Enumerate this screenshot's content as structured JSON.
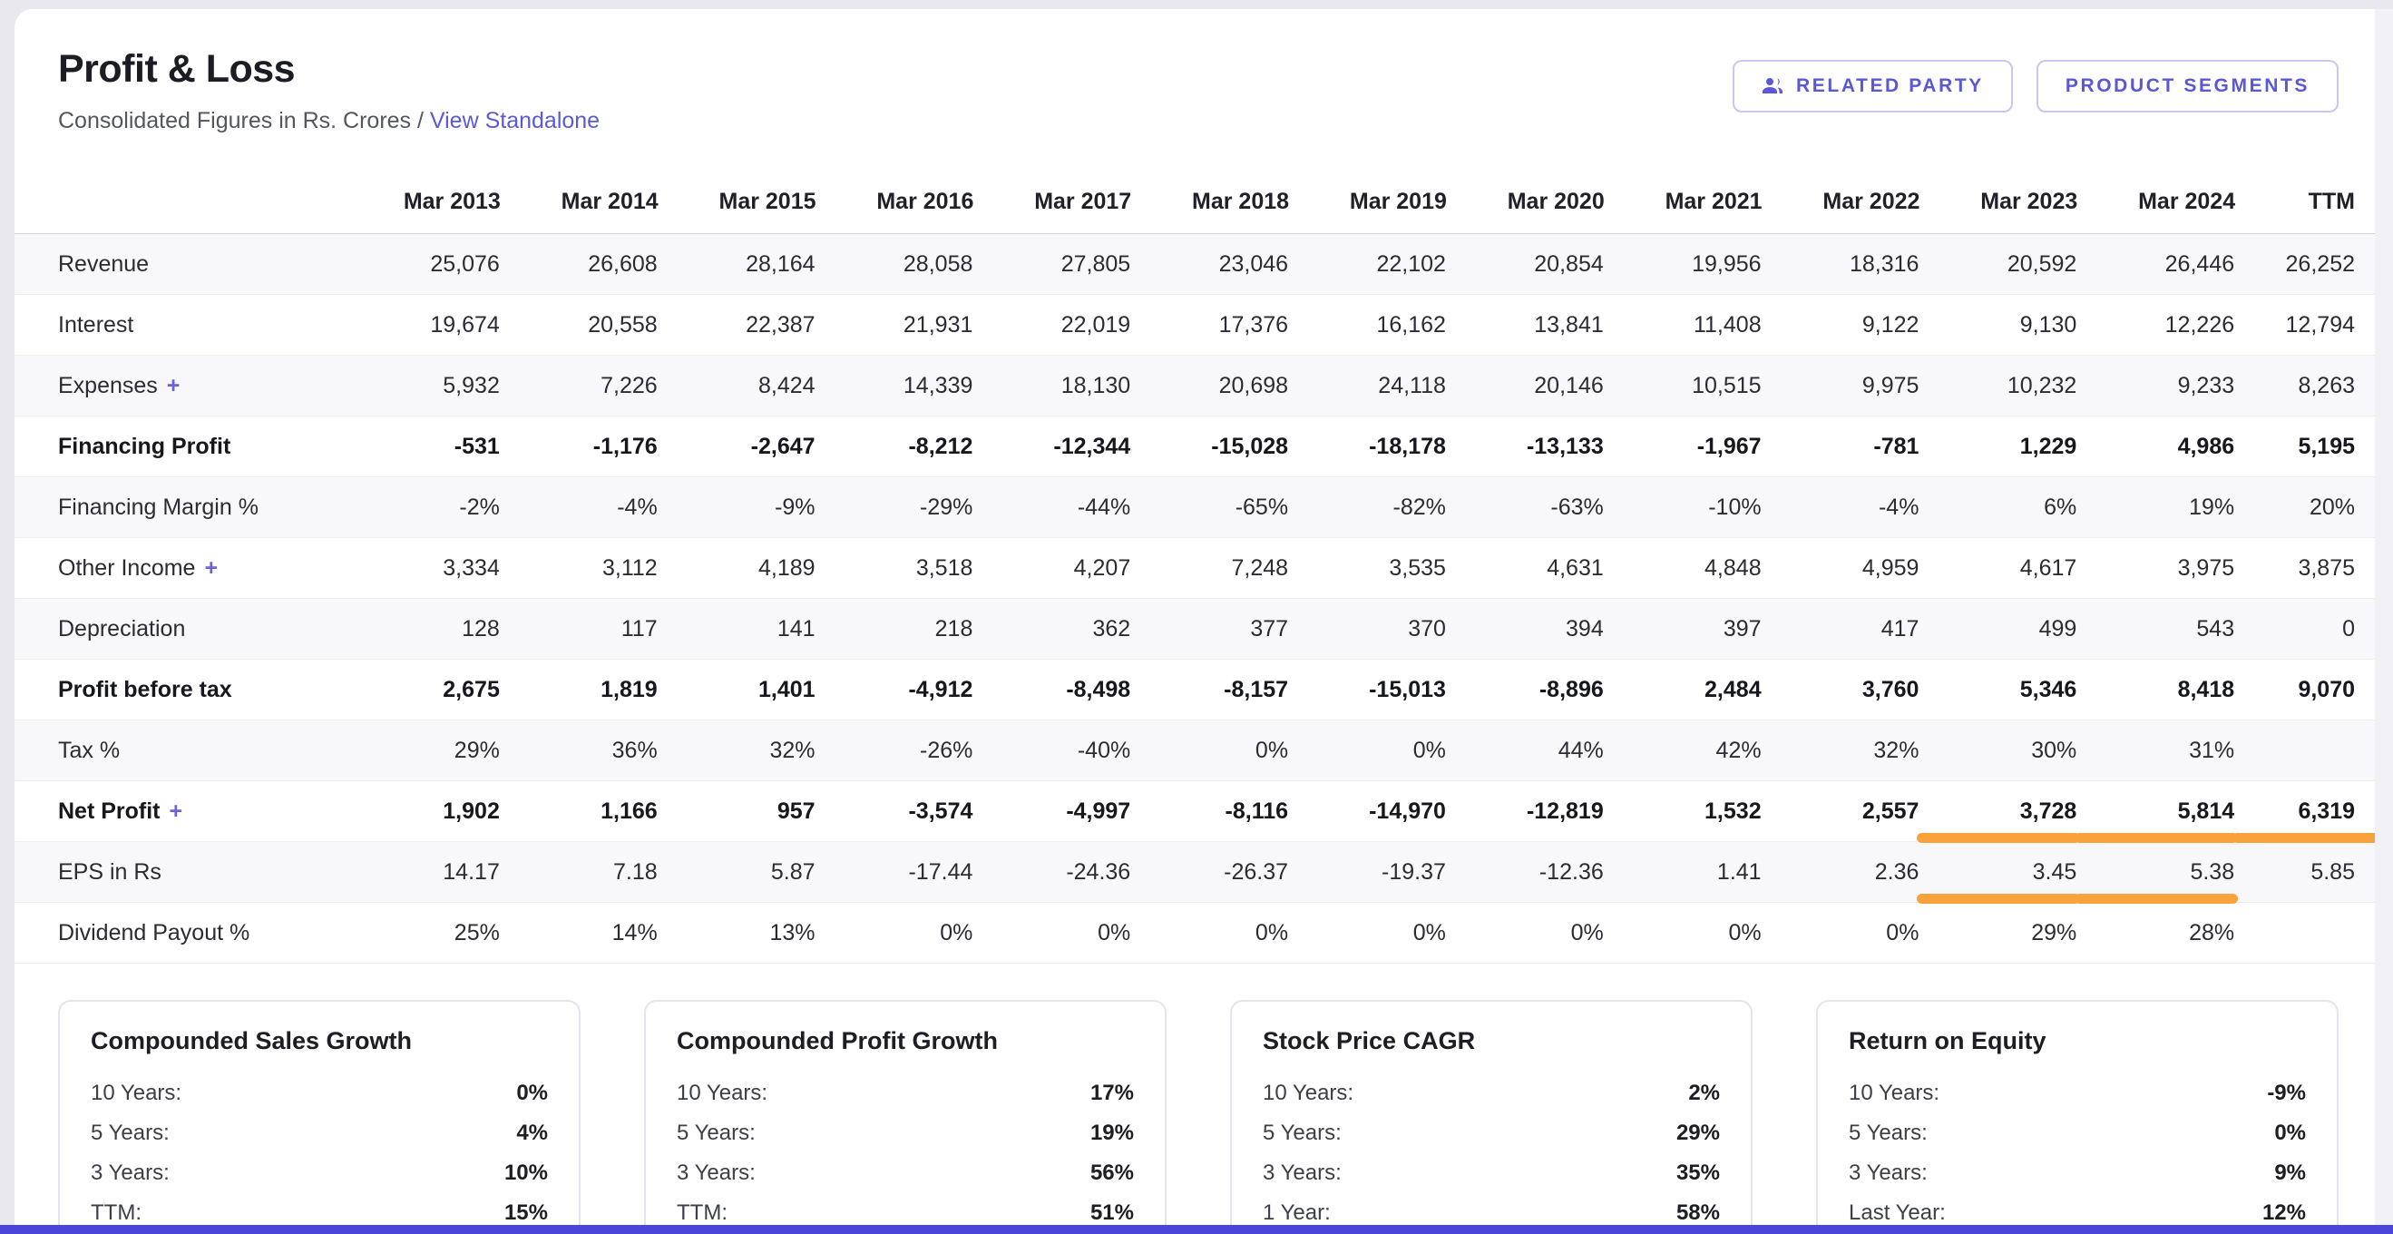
{
  "header": {
    "title": "Profit & Loss",
    "subtitle": "Consolidated Figures in Rs. Crores /",
    "standalone_link": "View Standalone",
    "buttons": [
      {
        "label": "RELATED PARTY",
        "icon": "users-icon"
      },
      {
        "label": "PRODUCT SEGMENTS"
      }
    ]
  },
  "colors": {
    "accent_purple": "#5a5ad6",
    "highlight_orange": "#f9a23c",
    "bottom_bar": "#4b46d8"
  },
  "table": {
    "columns": [
      "Mar 2013",
      "Mar 2014",
      "Mar 2015",
      "Mar 2016",
      "Mar 2017",
      "Mar 2018",
      "Mar 2019",
      "Mar 2020",
      "Mar 2021",
      "Mar 2022",
      "Mar 2023",
      "Mar 2024",
      "TTM"
    ],
    "rows": [
      {
        "label": "Revenue",
        "values": [
          "25,076",
          "26,608",
          "28,164",
          "28,058",
          "27,805",
          "23,046",
          "22,102",
          "20,854",
          "19,956",
          "18,316",
          "20,592",
          "26,446",
          "26,252"
        ]
      },
      {
        "label": "Interest",
        "values": [
          "19,674",
          "20,558",
          "22,387",
          "21,931",
          "22,019",
          "17,376",
          "16,162",
          "13,841",
          "11,408",
          "9,122",
          "9,130",
          "12,226",
          "12,794"
        ]
      },
      {
        "label": "Expenses",
        "expand": "+",
        "values": [
          "5,932",
          "7,226",
          "8,424",
          "14,339",
          "18,130",
          "20,698",
          "24,118",
          "20,146",
          "10,515",
          "9,975",
          "10,232",
          "9,233",
          "8,263"
        ]
      },
      {
        "label": "Financing Profit",
        "bold": true,
        "values": [
          "-531",
          "-1,176",
          "-2,647",
          "-8,212",
          "-12,344",
          "-15,028",
          "-18,178",
          "-13,133",
          "-1,967",
          "-781",
          "1,229",
          "4,986",
          "5,195"
        ]
      },
      {
        "label": "Financing Margin %",
        "values": [
          "-2%",
          "-4%",
          "-9%",
          "-29%",
          "-44%",
          "-65%",
          "-82%",
          "-63%",
          "-10%",
          "-4%",
          "6%",
          "19%",
          "20%"
        ]
      },
      {
        "label": "Other Income",
        "expand": "+",
        "values": [
          "3,334",
          "3,112",
          "4,189",
          "3,518",
          "4,207",
          "7,248",
          "3,535",
          "4,631",
          "4,848",
          "4,959",
          "4,617",
          "3,975",
          "3,875"
        ]
      },
      {
        "label": "Depreciation",
        "values": [
          "128",
          "117",
          "141",
          "218",
          "362",
          "377",
          "370",
          "394",
          "397",
          "417",
          "499",
          "543",
          "0"
        ]
      },
      {
        "label": "Profit before tax",
        "bold": true,
        "values": [
          "2,675",
          "1,819",
          "1,401",
          "-4,912",
          "-8,498",
          "-8,157",
          "-15,013",
          "-8,896",
          "2,484",
          "3,760",
          "5,346",
          "8,418",
          "9,070"
        ]
      },
      {
        "label": "Tax %",
        "values": [
          "29%",
          "36%",
          "32%",
          "-26%",
          "-40%",
          "0%",
          "0%",
          "44%",
          "42%",
          "32%",
          "30%",
          "31%",
          ""
        ]
      },
      {
        "label": "Net Profit",
        "expand": "+",
        "bold": true,
        "values": [
          "1,902",
          "1,166",
          "957",
          "-3,574",
          "-4,997",
          "-8,116",
          "-14,970",
          "-12,819",
          "1,532",
          "2,557",
          "3,728",
          "5,814",
          "6,319"
        ],
        "highlight": [
          10,
          11,
          12
        ]
      },
      {
        "label": "EPS in Rs",
        "values": [
          "14.17",
          "7.18",
          "5.87",
          "-17.44",
          "-24.36",
          "-26.37",
          "-19.37",
          "-12.36",
          "1.41",
          "2.36",
          "3.45",
          "5.38",
          "5.85"
        ],
        "highlight": [
          10,
          11
        ]
      },
      {
        "label": "Dividend Payout %",
        "values": [
          "25%",
          "14%",
          "13%",
          "0%",
          "0%",
          "0%",
          "0%",
          "0%",
          "0%",
          "0%",
          "29%",
          "28%",
          ""
        ]
      }
    ]
  },
  "cards": [
    {
      "title": "Compounded Sales Growth",
      "rows": [
        {
          "label": "10 Years:",
          "value": "0%"
        },
        {
          "label": "5 Years:",
          "value": "4%"
        },
        {
          "label": "3 Years:",
          "value": "10%"
        },
        {
          "label": "TTM:",
          "value": "15%"
        }
      ]
    },
    {
      "title": "Compounded Profit Growth",
      "rows": [
        {
          "label": "10 Years:",
          "value": "17%"
        },
        {
          "label": "5 Years:",
          "value": "19%"
        },
        {
          "label": "3 Years:",
          "value": "56%"
        },
        {
          "label": "TTM:",
          "value": "51%"
        }
      ]
    },
    {
      "title": "Stock Price CAGR",
      "rows": [
        {
          "label": "10 Years:",
          "value": "2%"
        },
        {
          "label": "5 Years:",
          "value": "29%"
        },
        {
          "label": "3 Years:",
          "value": "35%"
        },
        {
          "label": "1 Year:",
          "value": "58%"
        }
      ]
    },
    {
      "title": "Return on Equity",
      "rows": [
        {
          "label": "10 Years:",
          "value": "-9%"
        },
        {
          "label": "5 Years:",
          "value": "0%"
        },
        {
          "label": "3 Years:",
          "value": "9%"
        },
        {
          "label": "Last Year:",
          "value": "12%"
        }
      ]
    }
  ]
}
